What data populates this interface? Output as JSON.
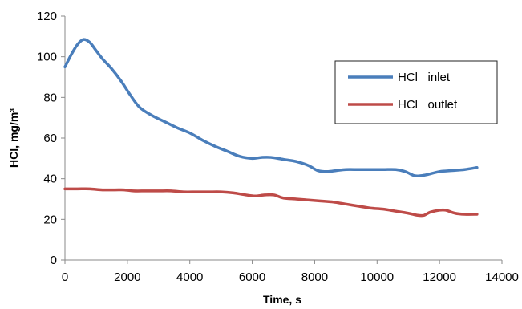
{
  "chart_data": {
    "type": "line",
    "title": "",
    "xlabel": "Time, s",
    "ylabel": "HCl, mg/m³",
    "xlim": [
      0,
      14000
    ],
    "ylim": [
      0,
      120
    ],
    "x_ticks": [
      0,
      2000,
      4000,
      6000,
      8000,
      10000,
      12000,
      14000
    ],
    "y_ticks": [
      0,
      20,
      40,
      60,
      80,
      100,
      120
    ],
    "grid": false,
    "legend_position": "top-right",
    "series": [
      {
        "name": "HCl   inlet",
        "color": "#4a7ebb",
        "x": [
          0,
          200,
          400,
          600,
          800,
          1000,
          1200,
          1500,
          1800,
          2100,
          2400,
          2800,
          3200,
          3600,
          4000,
          4400,
          4800,
          5200,
          5600,
          6000,
          6300,
          6600,
          7000,
          7400,
          7800,
          8100,
          8400,
          8700,
          9000,
          9400,
          9800,
          10200,
          10600,
          10900,
          11200,
          11400,
          11600,
          12000,
          12400,
          12800,
          13200
        ],
        "values": [
          95,
          101,
          106,
          108.5,
          107,
          103,
          99,
          94,
          88,
          81,
          75,
          71,
          68,
          65,
          62.5,
          59,
          56,
          53.5,
          51,
          50,
          50.5,
          50.5,
          49.5,
          48.5,
          46.5,
          44,
          43.5,
          44,
          44.5,
          44.5,
          44.5,
          44.5,
          44.5,
          43.5,
          41.5,
          41.5,
          42,
          43.5,
          44,
          44.5,
          45.5
        ]
      },
      {
        "name": "HCl   outlet",
        "color": "#be4b48",
        "x": [
          0,
          400,
          800,
          1200,
          1600,
          1900,
          2200,
          2600,
          3000,
          3400,
          3800,
          4200,
          4600,
          5000,
          5400,
          5800,
          6100,
          6400,
          6700,
          7000,
          7400,
          7800,
          8200,
          8600,
          9000,
          9400,
          9800,
          10200,
          10600,
          11000,
          11300,
          11500,
          11700,
          12000,
          12200,
          12500,
          12800,
          13200
        ],
        "values": [
          35,
          35,
          35,
          34.5,
          34.5,
          34.5,
          34,
          34,
          34,
          34,
          33.5,
          33.5,
          33.5,
          33.5,
          33,
          32,
          31.5,
          32,
          32,
          30.5,
          30,
          29.5,
          29,
          28.5,
          27.5,
          26.5,
          25.5,
          25,
          24,
          23,
          22,
          22,
          23.5,
          24.5,
          24.5,
          23,
          22.5,
          22.5
        ]
      }
    ]
  }
}
